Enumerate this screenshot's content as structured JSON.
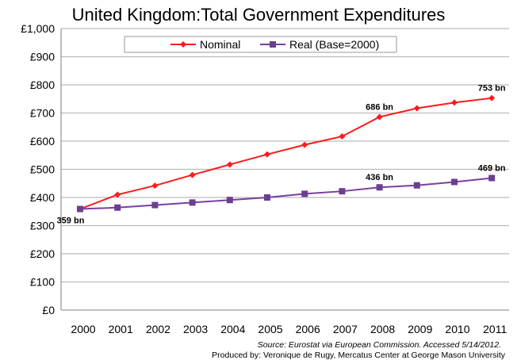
{
  "chart_data": {
    "type": "line",
    "title": "United Kingdom:Total Government Expenditures",
    "categories": [
      "2000",
      "2001",
      "2002",
      "2003",
      "2004",
      "2005",
      "2006",
      "2007",
      "2008",
      "2009",
      "2010",
      "2011"
    ],
    "ylim": [
      0,
      1000
    ],
    "yticks": [
      0,
      100,
      200,
      300,
      400,
      500,
      600,
      700,
      800,
      900,
      1000
    ],
    "ytick_labels": [
      "£0",
      "£100",
      "£200",
      "£300",
      "£400",
      "£500",
      "£600",
      "£700",
      "£800",
      "£900",
      "£1,000"
    ],
    "grid": true,
    "legend_position": "top",
    "series": [
      {
        "name": "Nominal",
        "color": "#ff1a1a",
        "marker": "diamond",
        "values": [
          359,
          410,
          442,
          480,
          517,
          553,
          587,
          617,
          686,
          717,
          737,
          753
        ]
      },
      {
        "name": "Real (Base=2000)",
        "color": "#7a3ea0",
        "marker": "square",
        "values": [
          359,
          364,
          373,
          382,
          391,
          400,
          413,
          422,
          436,
          443,
          455,
          469
        ]
      }
    ],
    "annotations": [
      {
        "text": "359 bn",
        "series": 1,
        "index": 0
      },
      {
        "text": "686 bn",
        "series": 0,
        "index": 8
      },
      {
        "text": "753 bn",
        "series": 0,
        "index": 11
      },
      {
        "text": "436 bn",
        "series": 1,
        "index": 8
      },
      {
        "text": "469 bn",
        "series": 1,
        "index": 11
      }
    ],
    "source": "Source: Eurostat via European Commission. Accessed 5/14/2012.",
    "credit": "Produced by: Veronique de Rugy, Mercatus Center at George Mason University"
  }
}
